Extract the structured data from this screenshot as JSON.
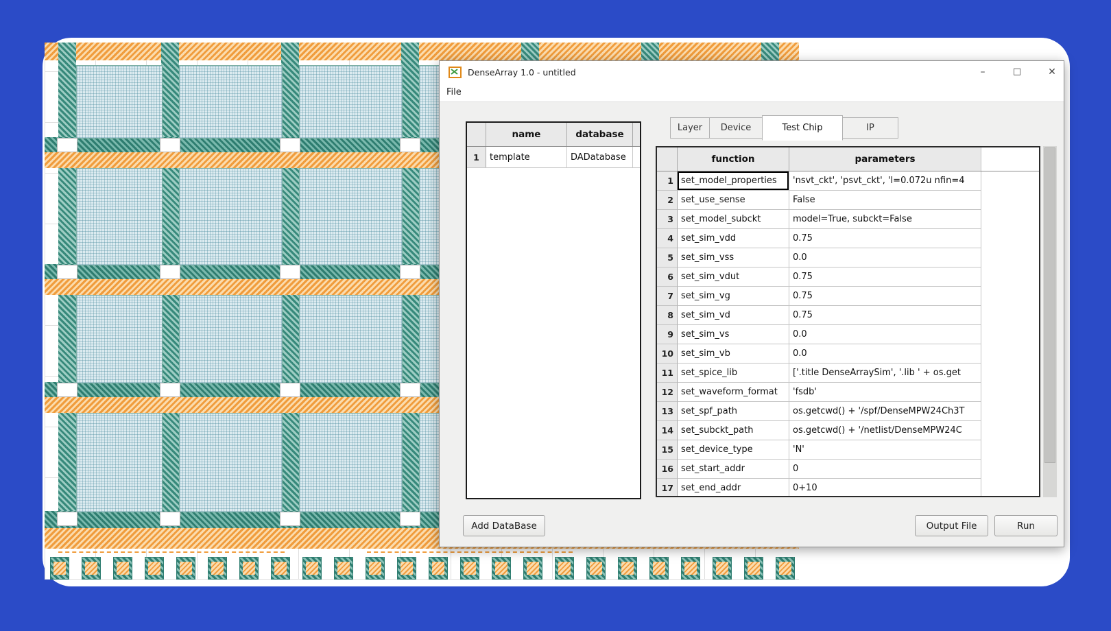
{
  "window": {
    "title": "DenseArray 1.0 - untitled",
    "controls": {
      "minimize": "–",
      "maximize": "□",
      "close": "✕"
    },
    "menu_items": [
      "File"
    ]
  },
  "left_table": {
    "headers": {
      "name": "name",
      "database": "database"
    },
    "rows": [
      {
        "num": "1",
        "name": "template",
        "database": "DADatabase"
      }
    ]
  },
  "tabs": {
    "labels": [
      "Layer",
      "Device",
      "Test Chip",
      "IP"
    ],
    "active": "Test Chip"
  },
  "right_table": {
    "headers": {
      "function": "function",
      "parameters": "parameters"
    },
    "selected_cell": "set_model_properties",
    "rows": [
      {
        "num": "1",
        "function": "set_model_properties",
        "parameters": "'nsvt_ckt', 'psvt_ckt', 'l=0.072u nfin=4"
      },
      {
        "num": "2",
        "function": "set_use_sense",
        "parameters": "False"
      },
      {
        "num": "3",
        "function": "set_model_subckt",
        "parameters": "model=True, subckt=False"
      },
      {
        "num": "4",
        "function": "set_sim_vdd",
        "parameters": "0.75"
      },
      {
        "num": "5",
        "function": "set_sim_vss",
        "parameters": "0.0"
      },
      {
        "num": "6",
        "function": "set_sim_vdut",
        "parameters": "0.75"
      },
      {
        "num": "7",
        "function": "set_sim_vg",
        "parameters": "0.75"
      },
      {
        "num": "8",
        "function": "set_sim_vd",
        "parameters": "0.75"
      },
      {
        "num": "9",
        "function": "set_sim_vs",
        "parameters": "0.0"
      },
      {
        "num": "10",
        "function": "set_sim_vb",
        "parameters": "0.0"
      },
      {
        "num": "11",
        "function": "set_spice_lib",
        "parameters": "['.title DenseArraySim', '.lib ' + os.get"
      },
      {
        "num": "12",
        "function": "set_waveform_format",
        "parameters": "'fsdb'"
      },
      {
        "num": "13",
        "function": "set_spf_path",
        "parameters": "os.getcwd() + '/spf/DenseMPW24Ch3T"
      },
      {
        "num": "14",
        "function": "set_subckt_path",
        "parameters": "os.getcwd() + '/netlist/DenseMPW24C"
      },
      {
        "num": "15",
        "function": "set_device_type",
        "parameters": "'N'"
      },
      {
        "num": "16",
        "function": "set_start_addr",
        "parameters": "0"
      },
      {
        "num": "17",
        "function": "set_end_addr",
        "parameters": "0+10"
      }
    ]
  },
  "buttons": {
    "add_database": "Add DataBase",
    "output_file": "Output File",
    "run": "Run"
  },
  "colors": {
    "background_blue": "#2b4bc7",
    "chip_teal": "#2e7d70",
    "chip_orange": "#f09c3c",
    "window_gray": "#f0f0ef"
  }
}
